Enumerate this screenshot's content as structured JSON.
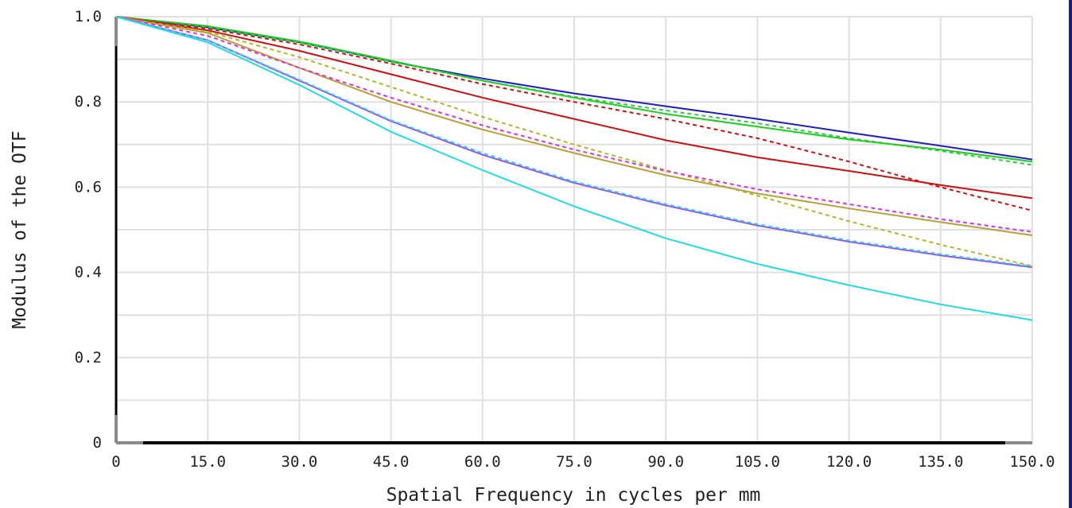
{
  "chart_data": {
    "type": "line",
    "title": "",
    "xlabel": "Spatial Frequency in cycles per mm",
    "ylabel": "Modulus of the OTF",
    "xlim": [
      0,
      150
    ],
    "ylim": [
      0,
      1.0
    ],
    "x_ticks": [
      0,
      15,
      30,
      45,
      60,
      75,
      90,
      105,
      120,
      135,
      150
    ],
    "x_tick_labels": [
      "0",
      "15.0",
      "30.0",
      "45.0",
      "60.0",
      "75.0",
      "90.0",
      "105.0",
      "120.0",
      "135.0",
      "150.0"
    ],
    "y_ticks": [
      0,
      0.2,
      0.4,
      0.6,
      0.8,
      1.0
    ],
    "y_tick_labels": [
      "0",
      "0.2",
      "0.4",
      "0.6",
      "0.8",
      "1.0"
    ],
    "grid": true,
    "x": [
      0,
      15,
      30,
      45,
      60,
      75,
      90,
      105,
      120,
      135,
      150
    ],
    "series": [
      {
        "color": "#1f1fbf",
        "dash": false,
        "values": [
          1.0,
          0.975,
          0.94,
          0.895,
          0.855,
          0.82,
          0.79,
          0.76,
          0.728,
          0.697,
          0.665
        ]
      },
      {
        "color": "#2ecc40",
        "dash": true,
        "values": [
          1.0,
          0.975,
          0.94,
          0.895,
          0.85,
          0.812,
          0.78,
          0.75,
          0.715,
          0.685,
          0.652
        ]
      },
      {
        "color": "#22cc22",
        "dash": false,
        "values": [
          1.0,
          0.978,
          0.942,
          0.897,
          0.85,
          0.81,
          0.772,
          0.742,
          0.712,
          0.688,
          0.66
        ]
      },
      {
        "color": "#cc1111",
        "dash": true,
        "values": [
          1.0,
          0.972,
          0.935,
          0.89,
          0.842,
          0.8,
          0.76,
          0.715,
          0.66,
          0.6,
          0.545
        ]
      },
      {
        "color": "#cc1111",
        "dash": false,
        "values": [
          1.0,
          0.968,
          0.92,
          0.865,
          0.81,
          0.76,
          0.71,
          0.67,
          0.638,
          0.605,
          0.574
        ]
      },
      {
        "color": "#b5b52a",
        "dash": true,
        "values": [
          1.0,
          0.965,
          0.905,
          0.835,
          0.765,
          0.7,
          0.64,
          0.58,
          0.52,
          0.465,
          0.415
        ]
      },
      {
        "color": "#b5a33a",
        "dash": false,
        "values": [
          1.0,
          0.962,
          0.88,
          0.8,
          0.735,
          0.68,
          0.628,
          0.585,
          0.55,
          0.518,
          0.487
        ]
      },
      {
        "color": "#dd33dd",
        "dash": true,
        "values": [
          1.0,
          0.955,
          0.88,
          0.81,
          0.745,
          0.688,
          0.638,
          0.595,
          0.56,
          0.525,
          0.495
        ]
      },
      {
        "color": "#9955dd",
        "dash": false,
        "values": [
          1.0,
          0.945,
          0.85,
          0.755,
          0.676,
          0.61,
          0.557,
          0.51,
          0.472,
          0.44,
          0.412
        ]
      },
      {
        "color": "#33ccff",
        "dash": true,
        "values": [
          1.0,
          0.945,
          0.852,
          0.757,
          0.68,
          0.613,
          0.56,
          0.513,
          0.475,
          0.443,
          0.414
        ]
      },
      {
        "color": "#22dddd",
        "dash": false,
        "values": [
          1.0,
          0.94,
          0.84,
          0.73,
          0.64,
          0.555,
          0.48,
          0.42,
          0.37,
          0.325,
          0.288
        ]
      }
    ]
  }
}
